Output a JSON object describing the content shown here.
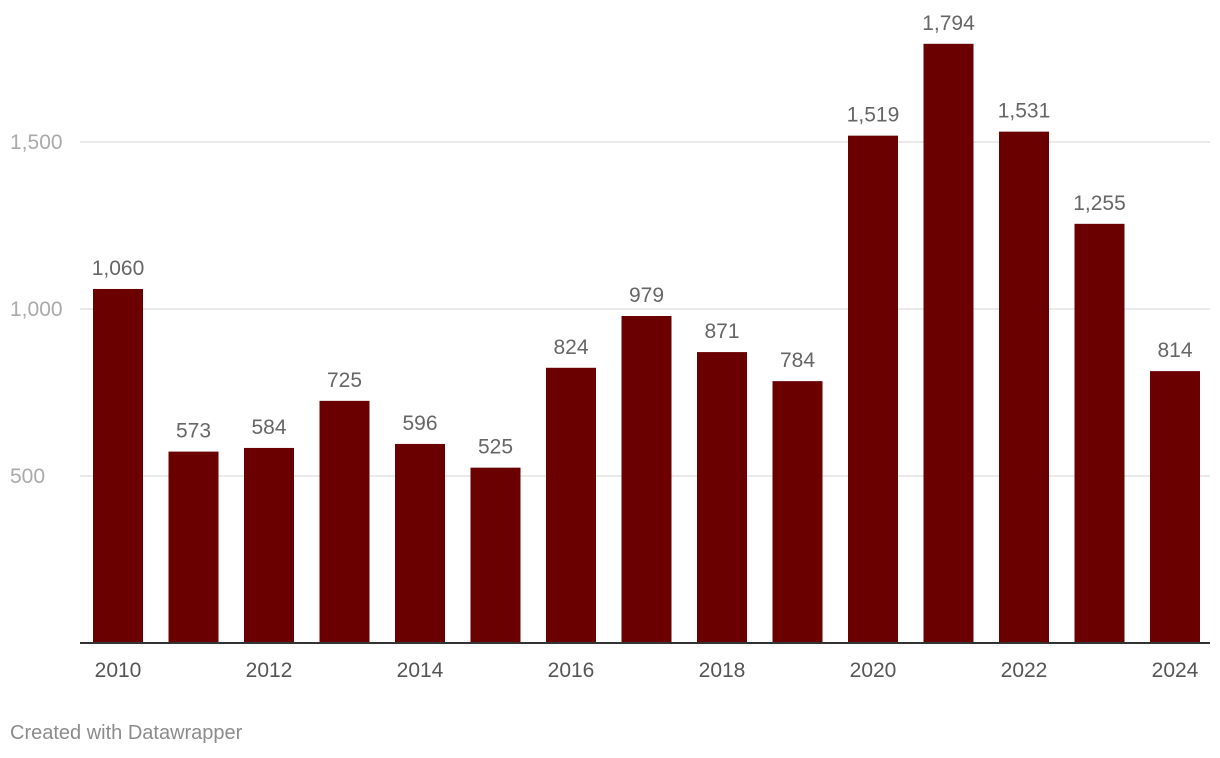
{
  "chart_data": {
    "type": "bar",
    "categories": [
      "2010",
      "2011",
      "2012",
      "2013",
      "2014",
      "2015",
      "2016",
      "2017",
      "2018",
      "2019",
      "2020",
      "2021",
      "2022",
      "2023",
      "2024"
    ],
    "values": [
      1060,
      573,
      584,
      725,
      596,
      525,
      824,
      979,
      871,
      784,
      1519,
      1794,
      1531,
      1255,
      814
    ],
    "value_labels": [
      "1,060",
      "573",
      "584",
      "725",
      "596",
      "525",
      "824",
      "979",
      "871",
      "784",
      "1,519",
      "1,794",
      "1,531",
      "1,255",
      "814"
    ],
    "x_tick_labels": [
      "2010",
      "",
      "2012",
      "",
      "2014",
      "",
      "2016",
      "",
      "2018",
      "",
      "2020",
      "",
      "2022",
      "",
      "2024"
    ],
    "y_ticks": [
      500,
      1000,
      1500
    ],
    "y_tick_labels": [
      "500",
      "1,000",
      "1,500"
    ],
    "ylim": [
      0,
      1800
    ],
    "title": "",
    "xlabel": "",
    "ylabel": "",
    "grid": true,
    "bar_color": "#6b0000"
  },
  "footer": {
    "credit": "Created with Datawrapper"
  }
}
